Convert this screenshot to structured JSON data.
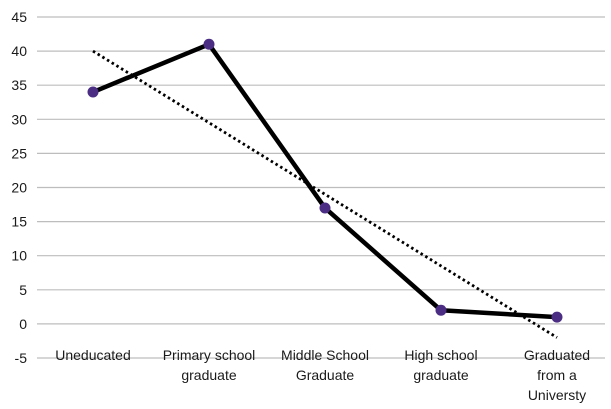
{
  "chart_data": {
    "type": "line",
    "title": "",
    "xlabel": "",
    "ylabel": "",
    "categories": [
      [
        "Uneducated"
      ],
      [
        "Primary school",
        "graduate"
      ],
      [
        "Middle School",
        "Graduate"
      ],
      [
        "High school",
        "graduate"
      ],
      [
        "Graduated",
        "from a",
        "Universty"
      ]
    ],
    "series": [
      {
        "values": [
          34,
          41,
          17,
          2,
          1
        ],
        "color": "#000000",
        "marker_color": "#4b2e83"
      }
    ],
    "trendline": {
      "type": "linear",
      "style": "dotted",
      "color": "#000000"
    },
    "ylim": [
      -5,
      45
    ],
    "yticks": [
      "-5",
      "0",
      "5",
      "10",
      "15",
      "20",
      "25",
      "30",
      "35",
      "40",
      "45"
    ],
    "grid": true,
    "legend": "none",
    "colors": {
      "grid": "#bdbdbd",
      "line": "#000000",
      "marker": "#4b2e83"
    }
  }
}
